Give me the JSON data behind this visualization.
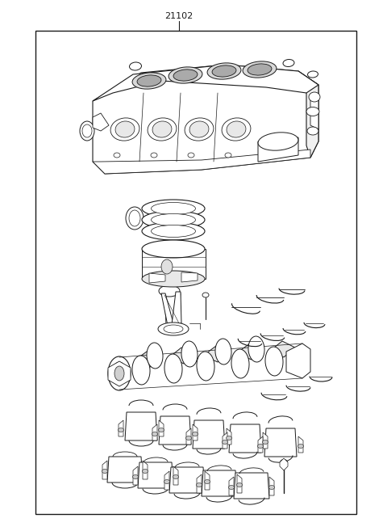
{
  "title_label": "21102",
  "background_color": "#ffffff",
  "line_color": "#1a1a1a",
  "fig_width": 4.8,
  "fig_height": 6.57,
  "dpi": 100
}
